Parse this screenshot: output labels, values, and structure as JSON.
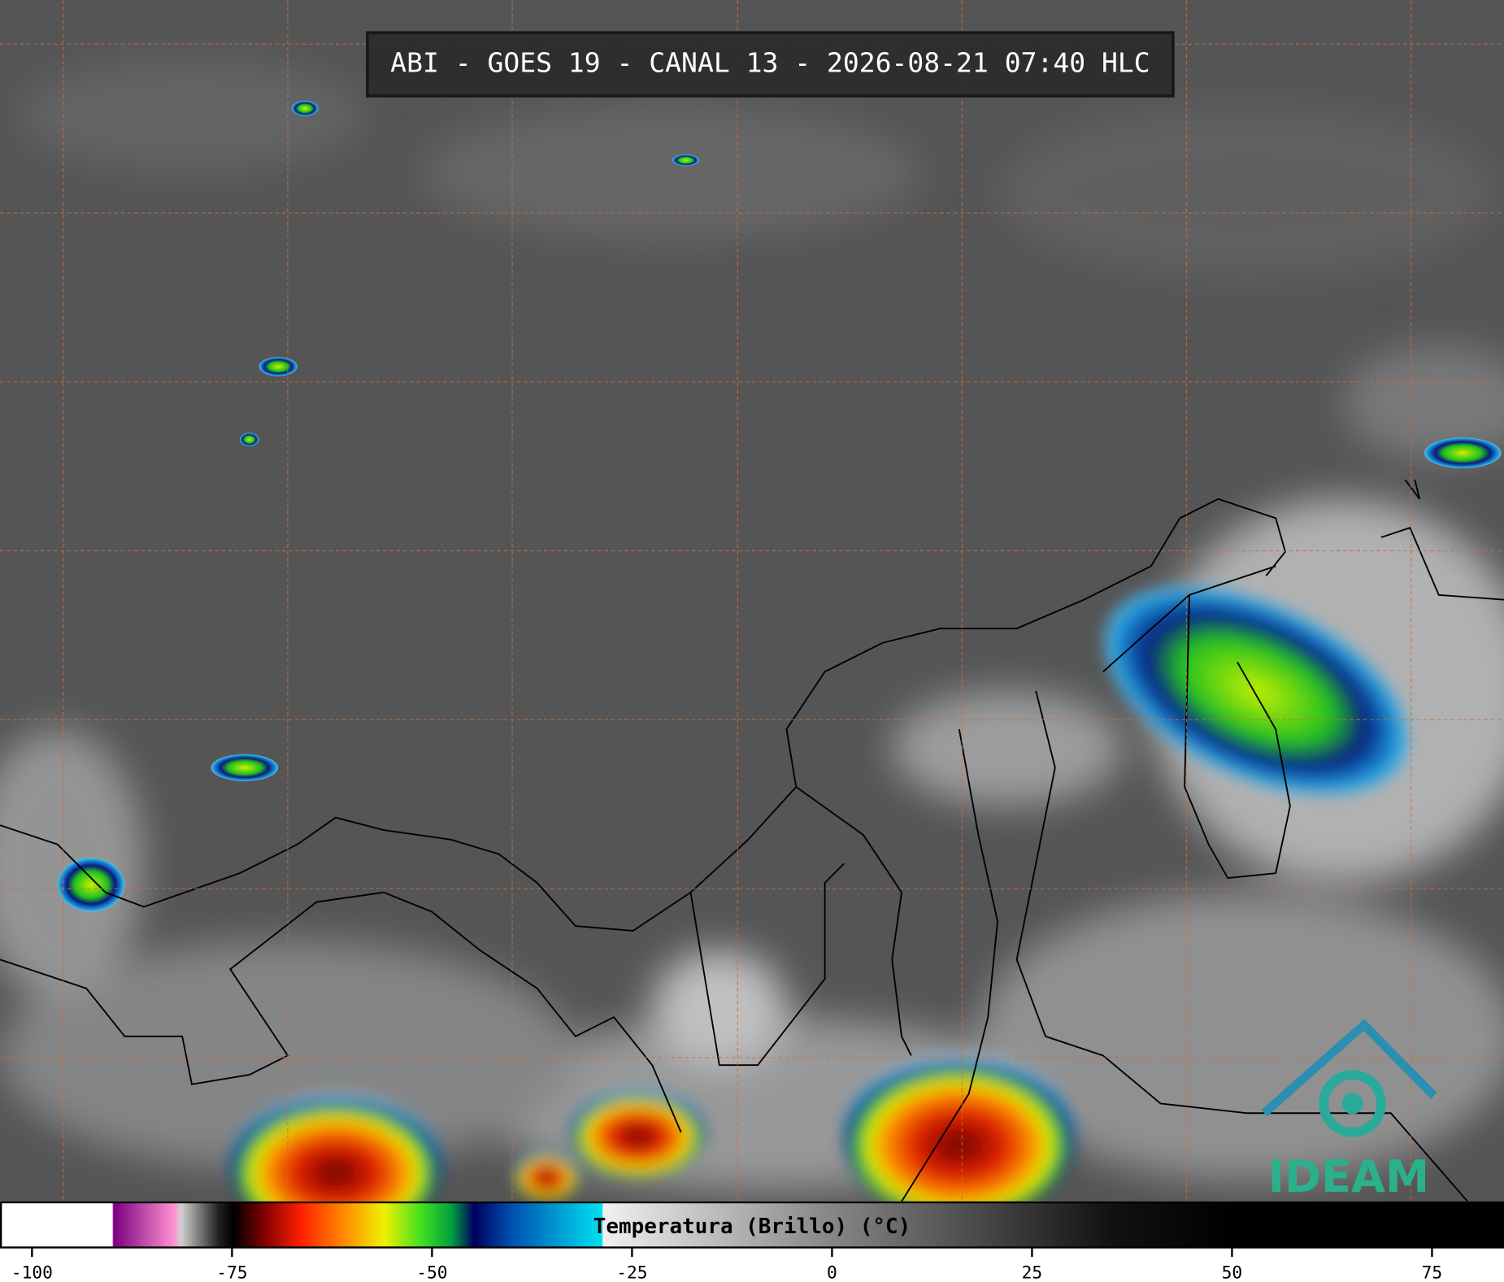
{
  "title": "ABI - GOES 19 - CANAL 13 - 2026-08-21 07:40 HLC",
  "logo": "IDEAM",
  "colorbar": {
    "label": "Temperatura (Brillo) (°C)",
    "range": [
      -104,
      84
    ],
    "ticks": [
      -100,
      -75,
      -50,
      -25,
      0,
      25,
      50,
      75
    ]
  }
}
